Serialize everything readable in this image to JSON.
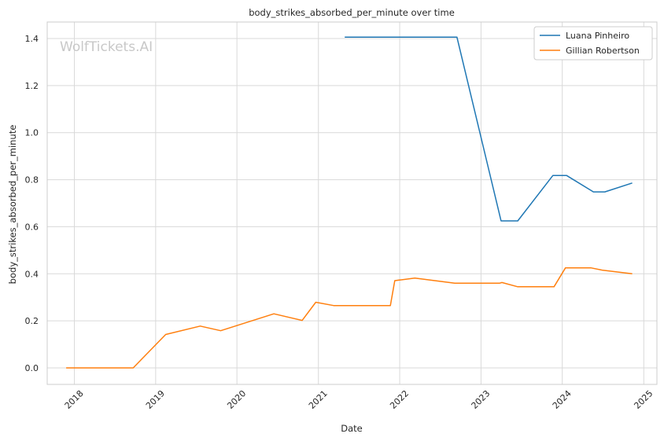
{
  "chart_data": {
    "type": "line",
    "title": "body_strikes_absorbed_per_minute over time",
    "xlabel": "Date",
    "ylabel": "body_strikes_absorbed_per_minute",
    "watermark": "WolfTickets.AI",
    "x_ticks": [
      "2018",
      "2019",
      "2020",
      "2021",
      "2022",
      "2023",
      "2024",
      "2025"
    ],
    "y_ticks": [
      "0.0",
      "0.2",
      "0.4",
      "0.6",
      "0.8",
      "1.0",
      "1.2",
      "1.4"
    ],
    "xlim": [
      "2017-09-01",
      "2025-03-01"
    ],
    "ylim": [
      -0.07,
      1.47
    ],
    "grid": true,
    "legend_position": "top-right",
    "series": [
      {
        "name": "Luana Pinheiro",
        "color": "#1f77b4",
        "points": [
          [
            "2021-04-29",
            1.406
          ],
          [
            "2022-09-15",
            1.406
          ],
          [
            "2023-04-01",
            0.625
          ],
          [
            "2023-06-15",
            0.625
          ],
          [
            "2023-11-20",
            0.818
          ],
          [
            "2024-01-20",
            0.818
          ],
          [
            "2024-05-20",
            0.748
          ],
          [
            "2024-07-10",
            0.748
          ],
          [
            "2024-11-10",
            0.786
          ]
        ]
      },
      {
        "name": "Gillian Robertson",
        "color": "#ff7f0e",
        "points": [
          [
            "2017-11-25",
            0.0
          ],
          [
            "2018-09-22",
            0.0
          ],
          [
            "2019-02-15",
            0.142
          ],
          [
            "2019-07-20",
            0.178
          ],
          [
            "2019-10-20",
            0.158
          ],
          [
            "2020-06-15",
            0.23
          ],
          [
            "2020-10-20",
            0.202
          ],
          [
            "2020-12-20",
            0.279
          ],
          [
            "2021-03-10",
            0.265
          ],
          [
            "2021-11-20",
            0.265
          ],
          [
            "2021-12-10",
            0.371
          ],
          [
            "2022-03-10",
            0.382
          ],
          [
            "2022-09-05",
            0.36
          ],
          [
            "2023-03-25",
            0.36
          ],
          [
            "2023-04-05",
            0.363
          ],
          [
            "2023-06-15",
            0.345
          ],
          [
            "2023-11-25",
            0.345
          ],
          [
            "2024-01-15",
            0.425
          ],
          [
            "2024-05-10",
            0.425
          ],
          [
            "2024-07-01",
            0.415
          ],
          [
            "2024-11-10",
            0.4
          ]
        ]
      }
    ]
  }
}
